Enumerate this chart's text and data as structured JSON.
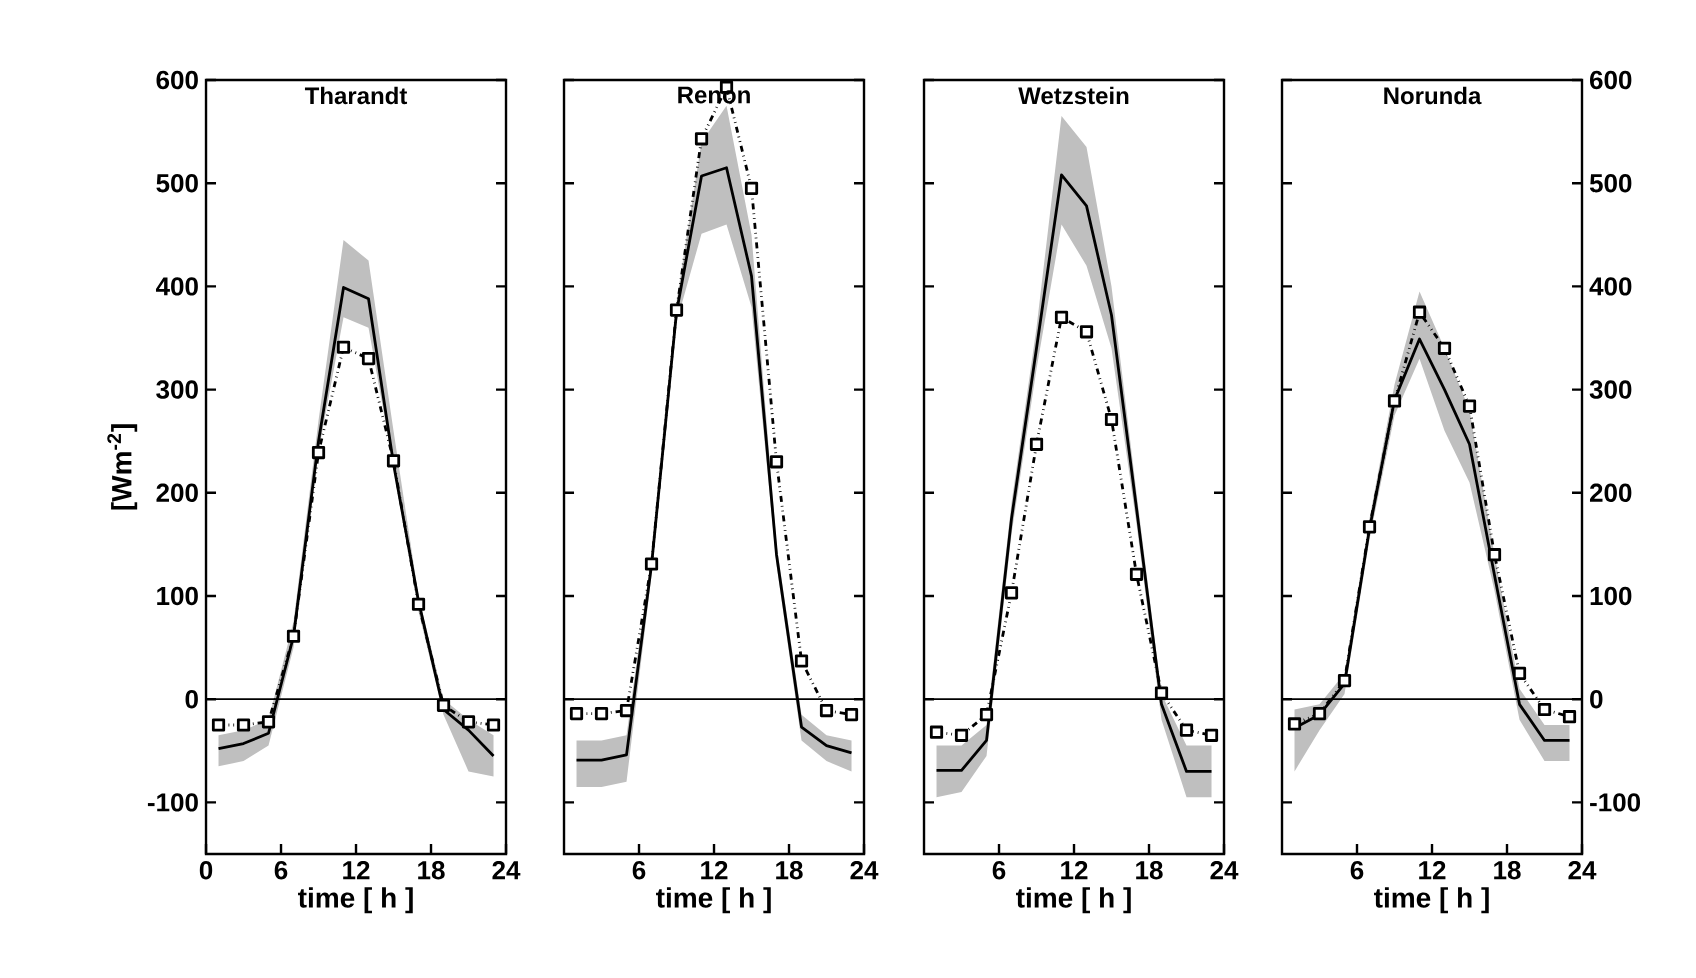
{
  "chart_data": [
    {
      "type": "line",
      "title": "Tharandt",
      "ylabel": "[Wm$^{-2}$]",
      "xlabel": "time [ h ]",
      "xlim": [
        0,
        24
      ],
      "xticks": [
        0,
        6,
        12,
        18,
        24
      ],
      "ylim": [
        -150,
        600
      ],
      "yticks": [
        -100,
        0,
        100,
        200,
        300,
        400,
        500,
        600
      ],
      "grid": false,
      "ref_lines": [
        {
          "axis": "y",
          "value": 0
        }
      ],
      "x": [
        1,
        3,
        5,
        7,
        9,
        11,
        13,
        15,
        17,
        19,
        21,
        23
      ],
      "series": [
        {
          "color": "#000000",
          "line_style": "solid",
          "marker": "none",
          "values": [
            -48,
            -43,
            -33,
            61,
            250,
            399,
            388,
            228,
            95,
            -10,
            -30,
            -55
          ],
          "lower": [
            -65,
            -60,
            -45,
            50,
            240,
            370,
            360,
            225,
            85,
            -15,
            -70,
            -75
          ],
          "upper": [
            -35,
            -30,
            -20,
            75,
            270,
            445,
            425,
            260,
            100,
            0,
            -20,
            -35
          ]
        },
        {
          "color": "#000000",
          "line_style": "dashed",
          "marker": "square",
          "values": [
            -25,
            -25,
            -22,
            61,
            239,
            341,
            330,
            231,
            92,
            -6,
            -22,
            -25
          ]
        }
      ]
    },
    {
      "type": "line",
      "title": "Renon",
      "xlabel": "time [ h ]",
      "xlim": [
        0,
        24
      ],
      "xticks": [
        6,
        12,
        18,
        24
      ],
      "ylim": [
        -150,
        600
      ],
      "yticks": [
        -100,
        0,
        100,
        200,
        300,
        400,
        500,
        600
      ],
      "tick_labels": "x",
      "grid": false,
      "ref_lines": [
        {
          "axis": "y",
          "value": 0
        }
      ],
      "x": [
        1,
        3,
        5,
        7,
        9,
        11,
        13,
        15,
        17,
        19,
        21,
        23
      ],
      "series": [
        {
          "color": "#000000",
          "line_style": "solid",
          "marker": "none",
          "values": [
            -59,
            -59,
            -54,
            130,
            375,
            507,
            515,
            410,
            140,
            -27,
            -45,
            -52
          ],
          "lower": [
            -85,
            -85,
            -80,
            120,
            365,
            451,
            460,
            380,
            130,
            -40,
            -60,
            -70
          ],
          "upper": [
            -40,
            -40,
            -35,
            140,
            385,
            540,
            575,
            450,
            150,
            -15,
            -35,
            -40
          ]
        },
        {
          "color": "#000000",
          "line_style": "dashed",
          "marker": "square",
          "values": [
            -14,
            -14,
            -11,
            131,
            377,
            543,
            593,
            495,
            230,
            37,
            -11,
            -15
          ]
        }
      ]
    },
    {
      "type": "line",
      "title": "Wetzstein",
      "xlabel": "time [ h ]",
      "xlim": [
        0,
        24
      ],
      "xticks": [
        6,
        12,
        18,
        24
      ],
      "ylim": [
        -150,
        600
      ],
      "yticks": [
        -100,
        0,
        100,
        200,
        300,
        400,
        500,
        600
      ],
      "tick_labels": "x",
      "grid": false,
      "ref_lines": [
        {
          "axis": "y",
          "value": 0
        }
      ],
      "x": [
        1,
        3,
        5,
        7,
        9,
        11,
        13,
        15,
        17,
        19,
        21,
        23
      ],
      "series": [
        {
          "color": "#000000",
          "line_style": "solid",
          "marker": "none",
          "values": [
            -69,
            -69,
            -40,
            175,
            340,
            508,
            478,
            372,
            185,
            -5,
            -70,
            -70
          ],
          "lower": [
            -95,
            -90,
            -55,
            160,
            320,
            460,
            420,
            340,
            170,
            -20,
            -95,
            -95
          ],
          "upper": [
            -45,
            -45,
            -25,
            190,
            360,
            565,
            535,
            400,
            200,
            5,
            -45,
            -45
          ]
        },
        {
          "color": "#000000",
          "line_style": "dashed",
          "marker": "square",
          "values": [
            -32,
            -35,
            -15,
            103,
            247,
            370,
            356,
            271,
            121,
            6,
            -30,
            -35
          ]
        }
      ]
    },
    {
      "type": "line",
      "title": "Norunda",
      "xlabel": "time [ h ]",
      "xlim": [
        0,
        24
      ],
      "xticks": [
        6,
        12,
        18,
        24
      ],
      "ylim": [
        -150,
        600
      ],
      "yticks": [
        -100,
        0,
        100,
        200,
        300,
        400,
        500,
        600
      ],
      "grid": false,
      "ref_lines": [
        {
          "axis": "y",
          "value": 0
        }
      ],
      "x": [
        1,
        3,
        5,
        7,
        9,
        11,
        13,
        15,
        17,
        19,
        21,
        23
      ],
      "series": [
        {
          "color": "#000000",
          "line_style": "solid",
          "marker": "none",
          "values": [
            -28,
            -15,
            15,
            165,
            290,
            349,
            300,
            247,
            120,
            -5,
            -40,
            -40
          ],
          "upper": [
            -10,
            -5,
            25,
            175,
            305,
            395,
            340,
            280,
            140,
            10,
            -25,
            -25
          ],
          "lower": [
            -70,
            -30,
            5,
            155,
            275,
            330,
            260,
            210,
            105,
            -20,
            -60,
            -60
          ]
        },
        {
          "color": "#000000",
          "line_style": "dashed",
          "marker": "square",
          "values": [
            -24,
            -14,
            18,
            167,
            289,
            375,
            340,
            284,
            140,
            25,
            -10,
            -17
          ]
        }
      ]
    }
  ]
}
